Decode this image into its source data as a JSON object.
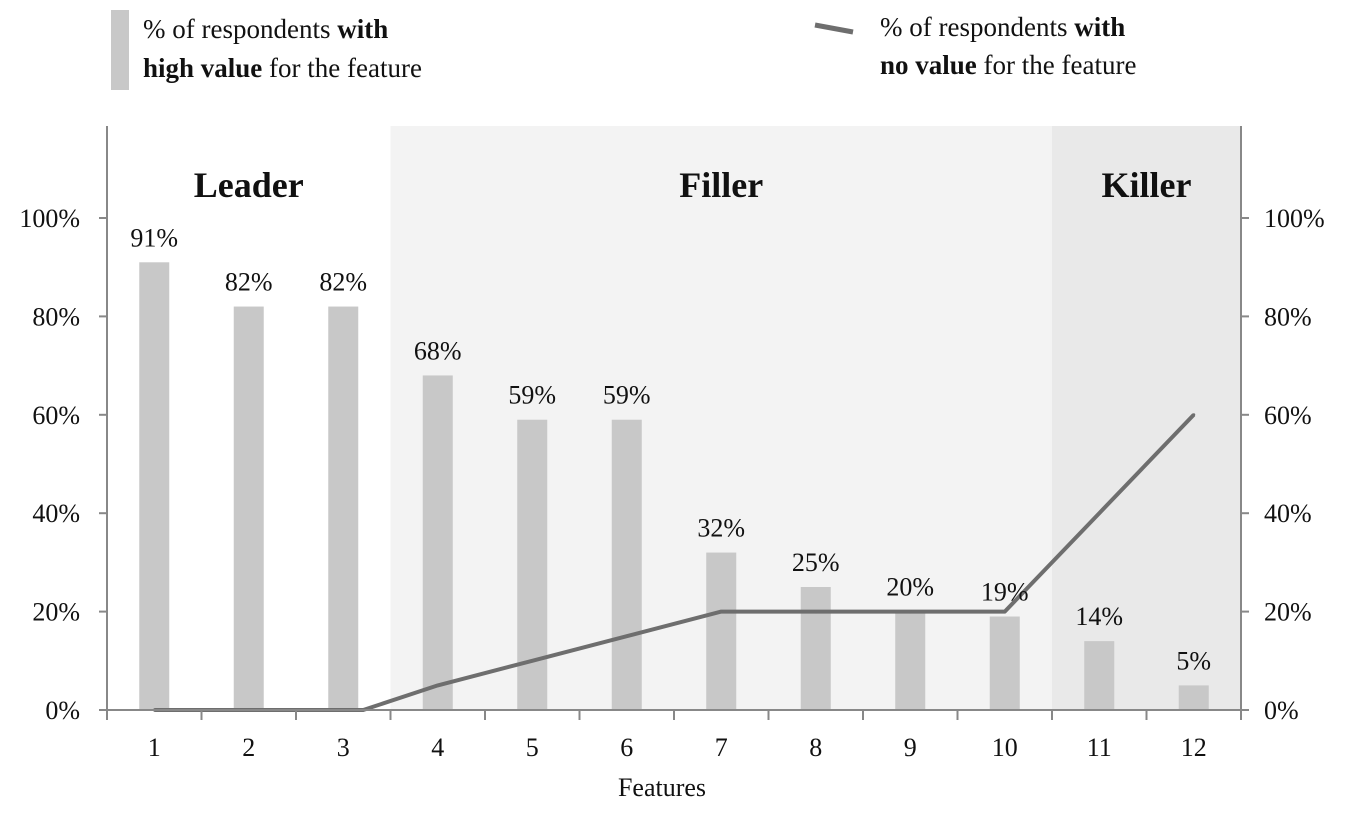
{
  "legend": {
    "bars": {
      "line1": {
        "pre": "% of respondents ",
        "bold": "with"
      },
      "line2": {
        "bold": "high value",
        "post": " for the feature"
      }
    },
    "line": {
      "line1": {
        "pre": "% of respondents ",
        "bold": "with"
      },
      "line2": {
        "bold": "no value",
        "post": " for the feature"
      }
    }
  },
  "chart_data": {
    "type": "bar",
    "xlabel": "Features",
    "categories": [
      "1",
      "2",
      "3",
      "4",
      "5",
      "6",
      "7",
      "8",
      "9",
      "10",
      "11",
      "12"
    ],
    "series": [
      {
        "kind": "bar",
        "values": [
          91,
          82,
          82,
          68,
          59,
          59,
          32,
          25,
          20,
          19,
          14,
          5
        ],
        "labels": [
          "91%",
          "82%",
          "82%",
          "68%",
          "59%",
          "59%",
          "32%",
          "25%",
          "20%",
          "19%",
          "14%",
          "5%"
        ],
        "color": "#c8c8c8"
      },
      {
        "kind": "line",
        "values": [
          0,
          0,
          0,
          5,
          10,
          15,
          20,
          20,
          20,
          20,
          40,
          60
        ],
        "color": "#6e6e6e"
      }
    ],
    "ylim": [
      0,
      100
    ],
    "yticks": [
      "0%",
      "20%",
      "40%",
      "60%",
      "80%",
      "100%"
    ],
    "y2ticks": [
      "0%",
      "20%",
      "40%",
      "60%",
      "80%",
      "100%"
    ],
    "regions": [
      {
        "label": "Leader",
        "from": 1,
        "to": 3,
        "color": "#ffffff"
      },
      {
        "label": "Filler",
        "from": 4,
        "to": 10,
        "color": "#f3f3f3"
      },
      {
        "label": "Killer",
        "from": 11,
        "to": 12,
        "color": "#e9e9e9"
      }
    ],
    "grid": false,
    "legend_position": "top"
  }
}
